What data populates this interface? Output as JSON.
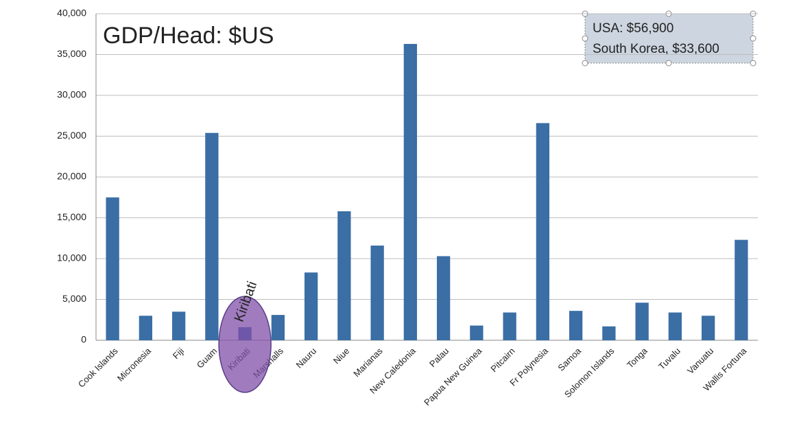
{
  "chart_data": {
    "type": "bar",
    "title": "GDP/Head: $US",
    "categories": [
      "Cook Islands",
      "Micronesia",
      "Fiji",
      "Guam",
      "Kiribati",
      "Marshalls",
      "Nauru",
      "Niue",
      "Marianas",
      "New Caledonia",
      "Palau",
      "Papua New Guinea",
      "Pitcairn",
      "Fr Polynesia",
      "Samoa",
      "Solomon Islands",
      "Tonga",
      "Tuvalu",
      "Vanuatu",
      "Wallis Fortuna"
    ],
    "values": [
      17500,
      3000,
      3500,
      25400,
      1600,
      3100,
      8300,
      15800,
      11600,
      36300,
      10300,
      1800,
      3400,
      26600,
      3600,
      1700,
      4600,
      3400,
      3000,
      12300
    ],
    "color": "#3a6ea5",
    "ylim": [
      0,
      40000
    ],
    "yticks": [
      0,
      {
        "value": 5000,
        "label": "5,000"
      },
      {
        "value": 10000,
        "label": "10,000"
      },
      {
        "value": 15000,
        "label": "15,000"
      },
      {
        "value": 20000,
        "label": "20,000"
      },
      {
        "value": 25000,
        "label": "25,000"
      },
      {
        "value": 30000,
        "label": "30,000"
      },
      {
        "value": 35000,
        "label": "35,000"
      },
      {
        "value": 40000,
        "label": "40,000"
      }
    ],
    "grid": true,
    "annotations": [
      "USA: $56,900",
      "South Korea, $33,600",
      "Kiribati"
    ]
  }
}
